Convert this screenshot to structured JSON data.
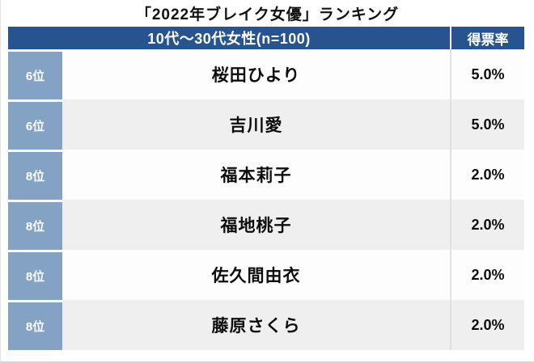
{
  "title": "「2022年ブレイク女優」ランキング",
  "table": {
    "header": {
      "group_label": "10代〜30代女性(n=100)",
      "vote_label": "得票率"
    },
    "rows": [
      {
        "rank": "6位",
        "name": "桜田ひより",
        "rate": "5.0%"
      },
      {
        "rank": "6位",
        "name": "吉川愛",
        "rate": "5.0%"
      },
      {
        "rank": "8位",
        "name": "福本莉子",
        "rate": "2.0%"
      },
      {
        "rank": "8位",
        "name": "福地桃子",
        "rate": "2.0%"
      },
      {
        "rank": "8位",
        "name": "佐久間由衣",
        "rate": "2.0%"
      },
      {
        "rank": "8位",
        "name": "藤原さくら",
        "rate": "2.0%"
      }
    ]
  },
  "colors": {
    "header_bg": "#27538f",
    "rank_bg": "#84a2c4",
    "row_alt_bg": "#efeff0",
    "row_bg": "#fdfdfd",
    "header_text": "#ffffff",
    "body_text": "#0d0d0d"
  },
  "chart_data": {
    "type": "table",
    "title": "「2022年ブレイク女優」ランキング",
    "subtitle": "10代〜30代女性(n=100)",
    "columns": [
      "10代〜30代女性(n=100)",
      "得票率"
    ],
    "rows": [
      [
        "6位",
        "桜田ひより",
        "5.0%"
      ],
      [
        "6位",
        "吉川愛",
        "5.0%"
      ],
      [
        "8位",
        "福本莉子",
        "2.0%"
      ],
      [
        "8位",
        "福地桃子",
        "2.0%"
      ],
      [
        "8位",
        "佐久間由衣",
        "2.0%"
      ],
      [
        "8位",
        "藤原さくら",
        "2.0%"
      ]
    ],
    "series": [
      {
        "name": "得票率(%)",
        "categories": [
          "桜田ひより",
          "吉川愛",
          "福本莉子",
          "福地桃子",
          "佐久間由衣",
          "藤原さくら"
        ],
        "values": [
          5.0,
          5.0,
          2.0,
          2.0,
          2.0,
          2.0
        ]
      }
    ],
    "layout": {
      "alternating_row_shading": true,
      "rank_column_spans_header_left_cell": true
    }
  }
}
